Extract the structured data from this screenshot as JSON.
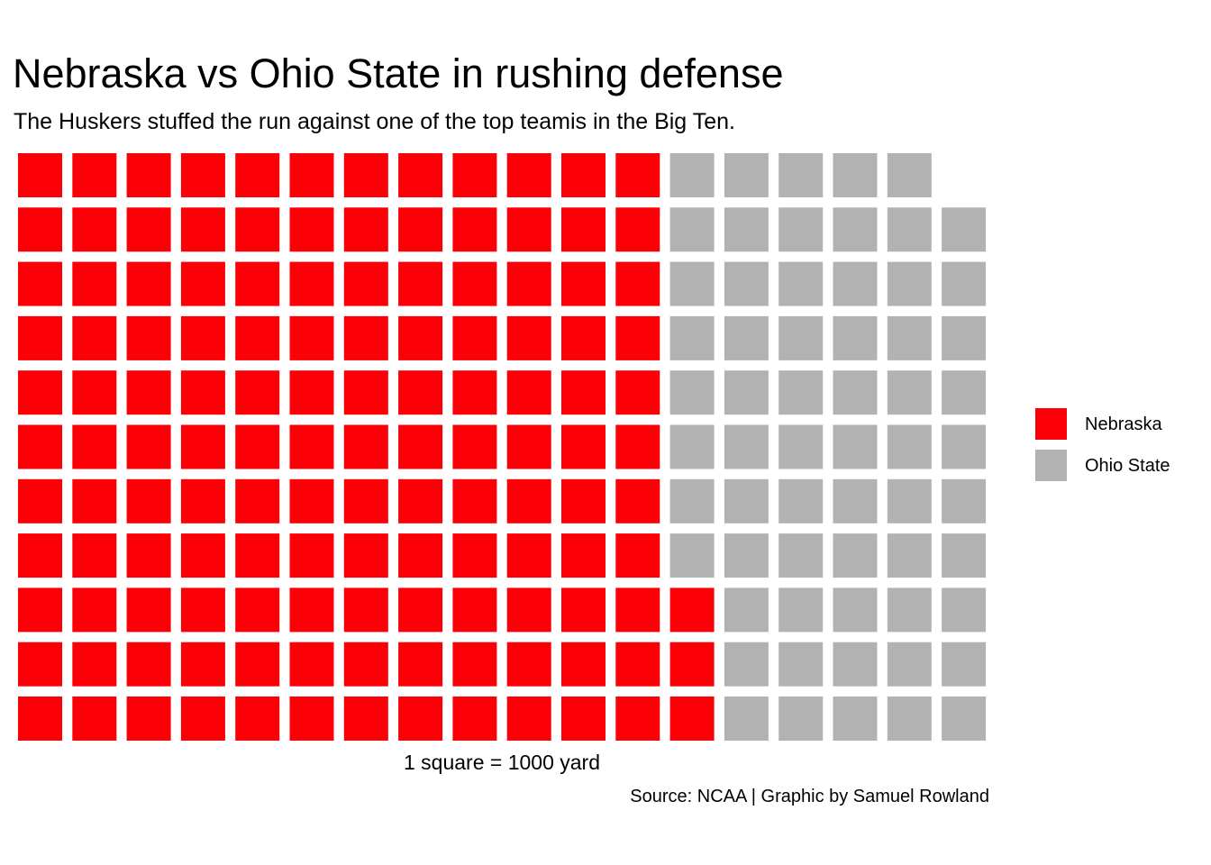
{
  "chart_data": {
    "type": "waffle",
    "title": "Nebraska vs Ohio State in rushing defense",
    "subtitle": "The Huskers stuffed the run against one of the top teamis in the Big Ten.",
    "xlabel": "1 square = 1000 yard",
    "caption": "Source: NCAA | Graphic by Samuel Rowland",
    "rows": 11,
    "legend_position": "right",
    "series": [
      {
        "name": "Nebraska",
        "values": [
          135
        ],
        "color": "#FC0008"
      },
      {
        "name": "Ohio State",
        "values": [
          62
        ],
        "color": "#B2B2B2"
      }
    ]
  }
}
